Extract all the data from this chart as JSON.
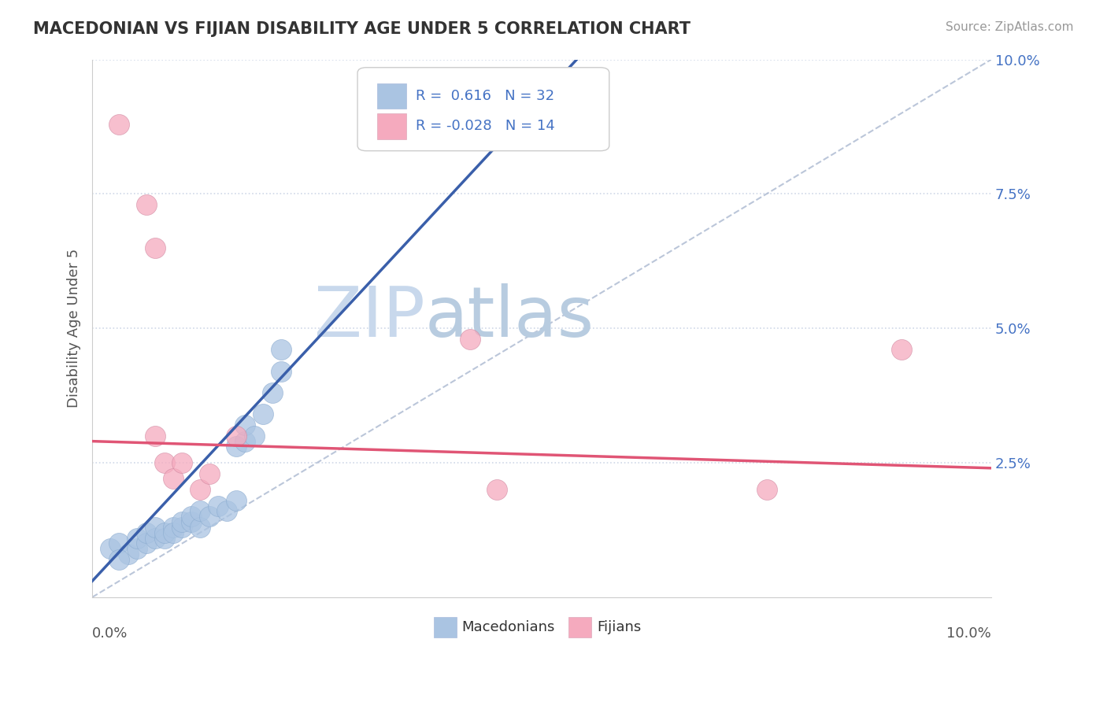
{
  "title": "MACEDONIAN VS FIJIAN DISABILITY AGE UNDER 5 CORRELATION CHART",
  "source": "Source: ZipAtlas.com",
  "ylabel": "Disability Age Under 5",
  "xlim": [
    0.0,
    0.1
  ],
  "ylim": [
    0.0,
    0.1
  ],
  "ytick_vals": [
    0.025,
    0.05,
    0.075,
    0.1
  ],
  "ytick_labels": [
    "2.5%",
    "5.0%",
    "7.5%",
    "10.0%"
  ],
  "legend_macedonian": "Macedonians",
  "legend_fijian": "Fijians",
  "r_macedonian": "0.616",
  "n_macedonian": "32",
  "r_fijian": "-0.028",
  "n_fijian": "14",
  "macedonian_color": "#aac4e2",
  "fijian_color": "#f5aabe",
  "trend_macedonian_color": "#3a5faa",
  "trend_fijian_color": "#e05575",
  "diagonal_color": "#aab8d0",
  "watermark_zip_color": "#ccd8ea",
  "watermark_atlas_color": "#c8d4e6",
  "background_color": "#ffffff",
  "grid_color": "#d0d8e8",
  "macedonian_points": [
    [
      0.002,
      0.009
    ],
    [
      0.003,
      0.01
    ],
    [
      0.004,
      0.008
    ],
    [
      0.005,
      0.009
    ],
    [
      0.005,
      0.011
    ],
    [
      0.006,
      0.01
    ],
    [
      0.006,
      0.012
    ],
    [
      0.007,
      0.011
    ],
    [
      0.007,
      0.013
    ],
    [
      0.008,
      0.011
    ],
    [
      0.008,
      0.012
    ],
    [
      0.009,
      0.013
    ],
    [
      0.009,
      0.012
    ],
    [
      0.01,
      0.013
    ],
    [
      0.01,
      0.014
    ],
    [
      0.011,
      0.014
    ],
    [
      0.011,
      0.015
    ],
    [
      0.012,
      0.013
    ],
    [
      0.012,
      0.016
    ],
    [
      0.013,
      0.015
    ],
    [
      0.014,
      0.017
    ],
    [
      0.015,
      0.016
    ],
    [
      0.016,
      0.018
    ],
    [
      0.016,
      0.028
    ],
    [
      0.017,
      0.029
    ],
    [
      0.017,
      0.032
    ],
    [
      0.018,
      0.03
    ],
    [
      0.019,
      0.034
    ],
    [
      0.02,
      0.038
    ],
    [
      0.021,
      0.042
    ],
    [
      0.021,
      0.046
    ],
    [
      0.003,
      0.007
    ]
  ],
  "fijian_points": [
    [
      0.003,
      0.088
    ],
    [
      0.006,
      0.073
    ],
    [
      0.007,
      0.065
    ],
    [
      0.007,
      0.03
    ],
    [
      0.008,
      0.025
    ],
    [
      0.009,
      0.022
    ],
    [
      0.01,
      0.025
    ],
    [
      0.012,
      0.02
    ],
    [
      0.013,
      0.023
    ],
    [
      0.016,
      0.03
    ],
    [
      0.042,
      0.048
    ],
    [
      0.09,
      0.046
    ],
    [
      0.045,
      0.02
    ],
    [
      0.075,
      0.02
    ]
  ]
}
